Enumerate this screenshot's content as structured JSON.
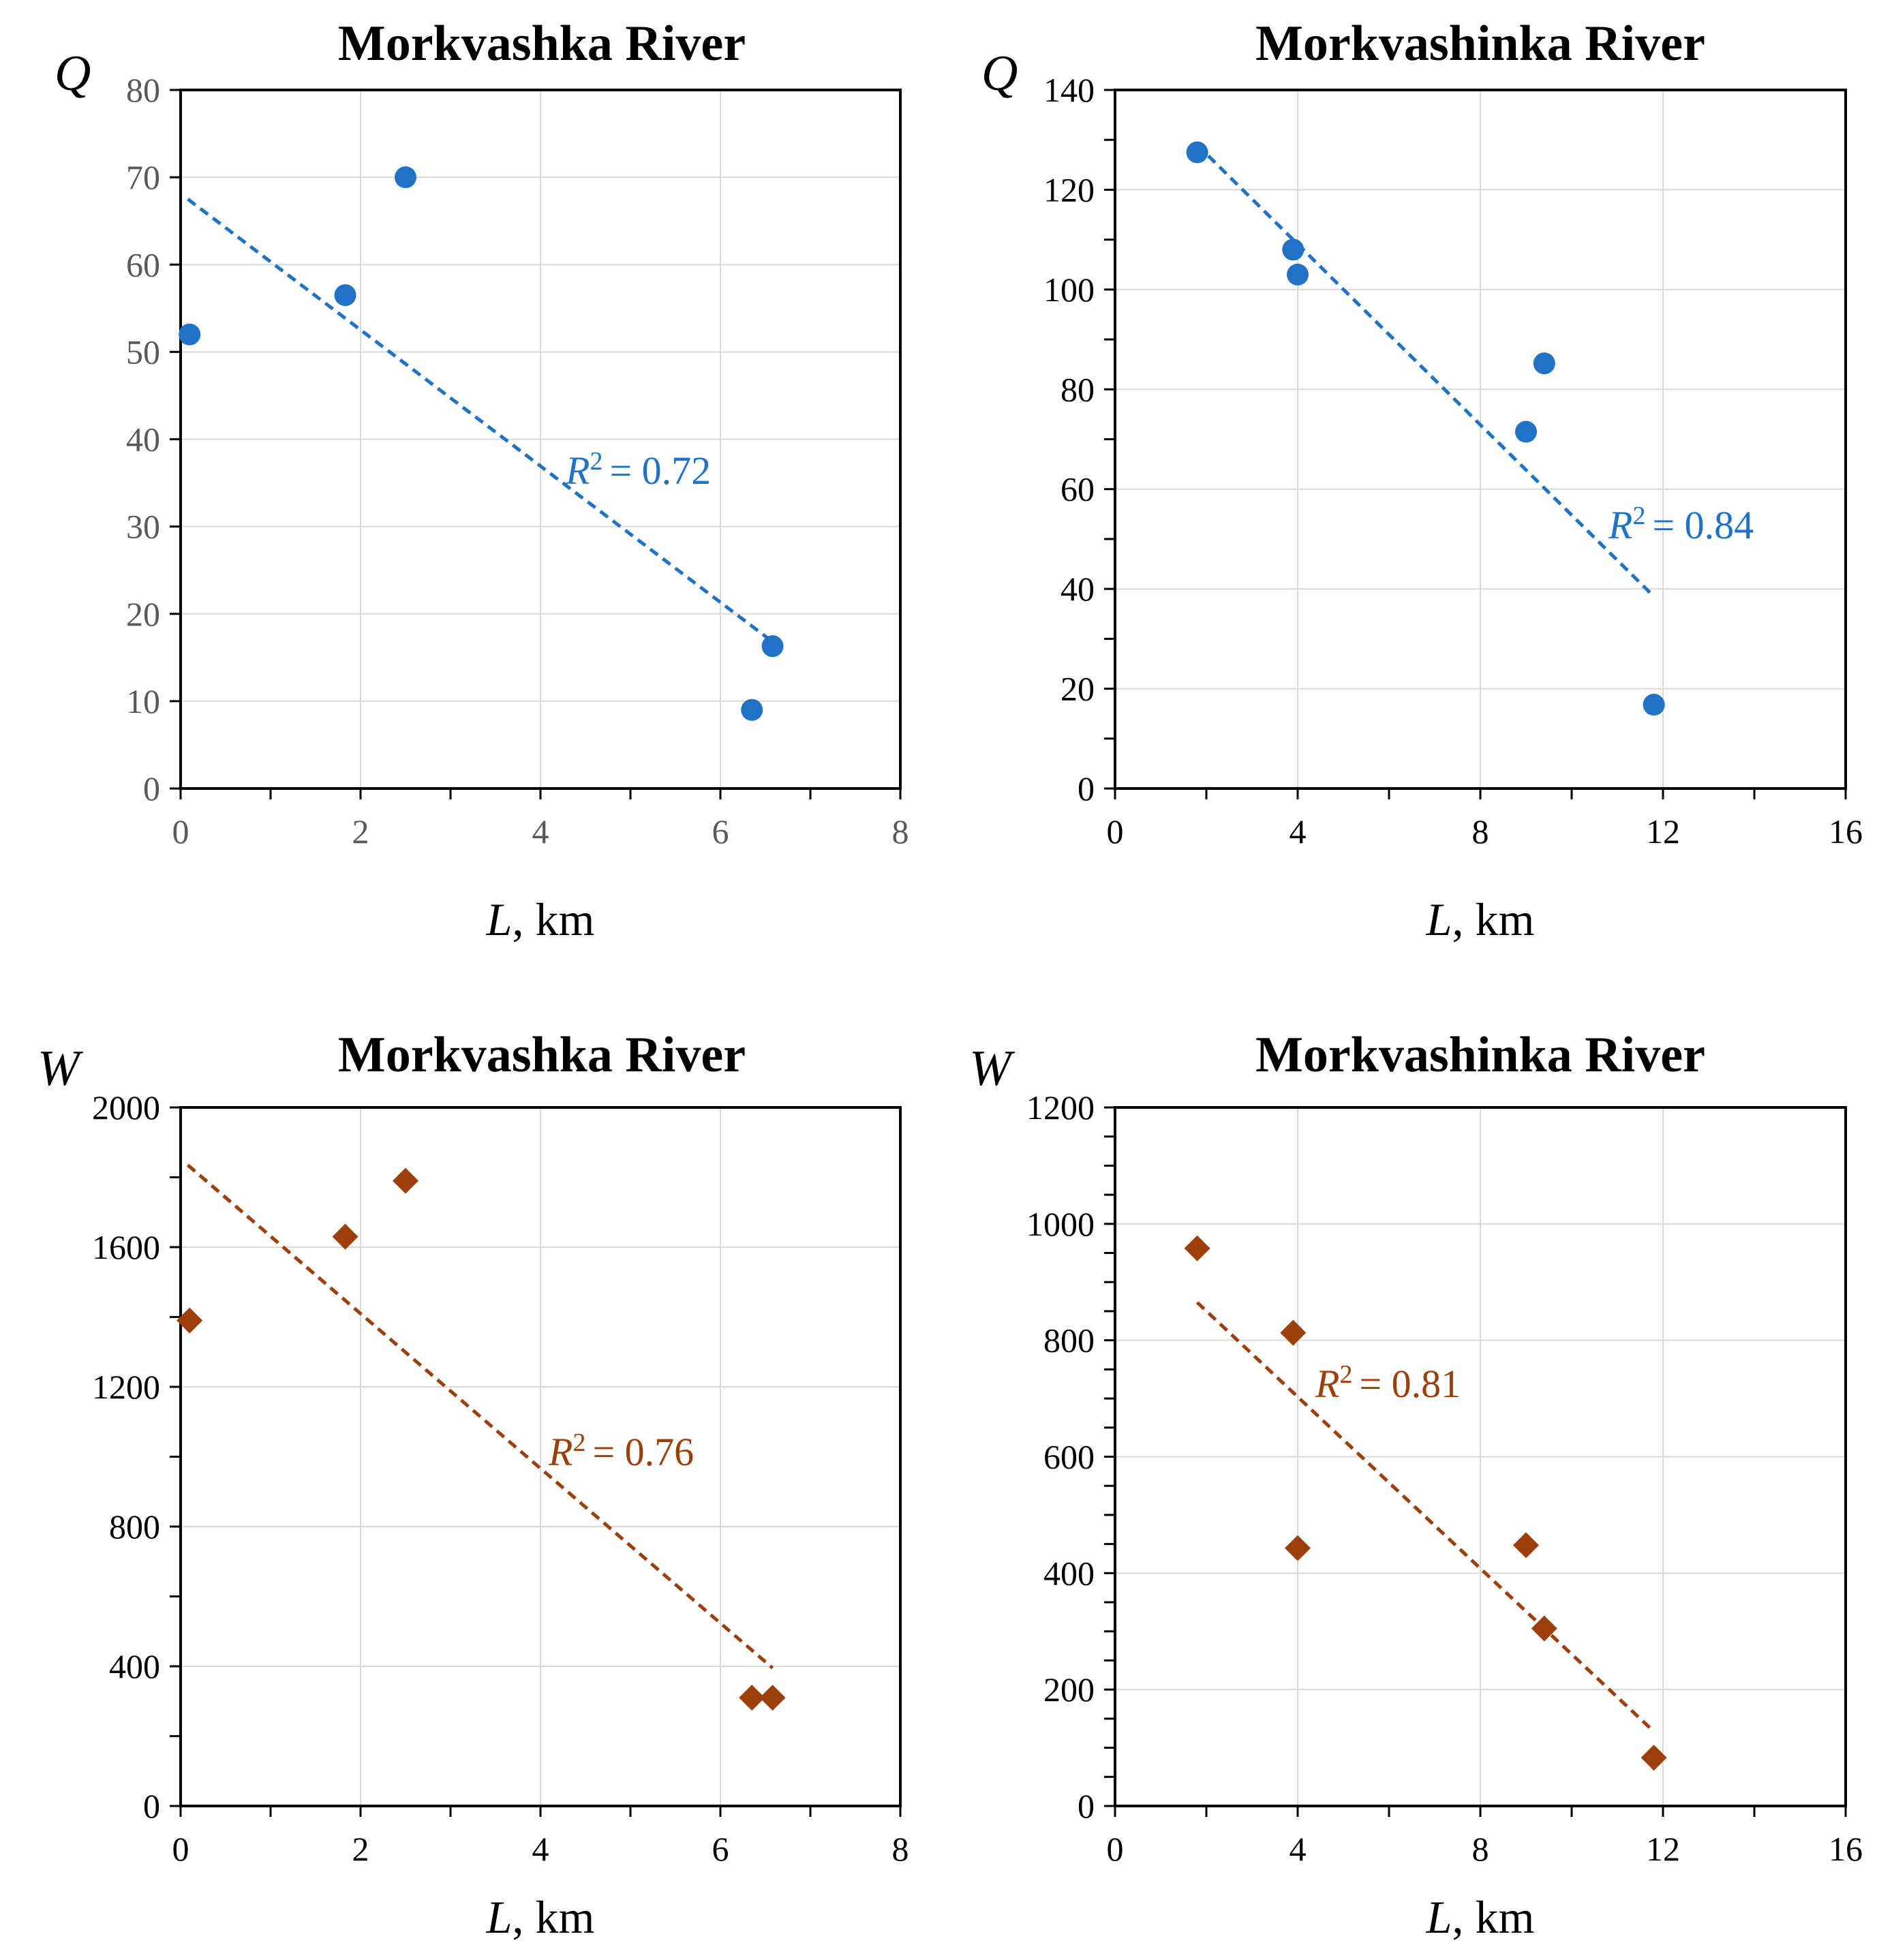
{
  "colors": {
    "blue": "#1f72c6",
    "brown": "#9c3f0a",
    "grid": "#d9d9d9",
    "axis": "#000000"
  },
  "chart_data": [
    {
      "id": "q-morkvashka",
      "type": "scatter",
      "title": "Morkvashka River",
      "y_var": "Q",
      "x_label_var": "L",
      "x_label_unit": ", km",
      "xlim": [
        0,
        8
      ],
      "ylim": [
        0,
        80
      ],
      "x_ticks": [
        0,
        2,
        4,
        6,
        8
      ],
      "y_ticks": [
        0,
        10,
        20,
        30,
        40,
        50,
        60,
        70,
        80
      ],
      "marker": "circle",
      "color": "blue",
      "series": [
        {
          "name": "Q",
          "x": [
            0.1,
            1.83,
            2.5,
            6.35,
            6.58
          ],
          "y": [
            52,
            56.5,
            70,
            9,
            16.3
          ]
        }
      ],
      "trendline": {
        "x": [
          0.08,
          6.58
        ],
        "y": [
          67.5,
          16.8
        ]
      },
      "r2_text": "= 0.72"
    },
    {
      "id": "q-morkvashinka",
      "type": "scatter",
      "title": "Morkvashinka River",
      "y_var": "Q",
      "x_label_var": "L",
      "x_label_unit": ", km",
      "xlim": [
        0,
        16
      ],
      "ylim": [
        0,
        140
      ],
      "x_ticks": [
        0,
        4,
        8,
        12,
        16
      ],
      "y_ticks": [
        0,
        20,
        40,
        60,
        80,
        100,
        120,
        140
      ],
      "marker": "circle",
      "color": "blue",
      "series": [
        {
          "name": "Q",
          "x": [
            1.8,
            3.9,
            4.0,
            9.0,
            9.4,
            11.8
          ],
          "y": [
            127.5,
            108,
            103,
            71.5,
            85.2,
            16.8
          ]
        }
      ],
      "trendline": {
        "x": [
          1.8,
          11.8
        ],
        "y": [
          129,
          38.5
        ]
      },
      "r2_text": "= 0.84"
    },
    {
      "id": "w-morkvashka",
      "type": "scatter",
      "title": "Morkvashka River",
      "y_var": "W",
      "x_label_var": "L",
      "x_label_unit": ", km",
      "xlim": [
        0,
        8
      ],
      "ylim": [
        0,
        2000
      ],
      "x_ticks": [
        0,
        2,
        4,
        6,
        8
      ],
      "y_ticks": [
        0,
        400,
        800,
        1200,
        1600,
        2000
      ],
      "marker": "diamond",
      "color": "brown",
      "series": [
        {
          "name": "W",
          "x": [
            0.1,
            1.83,
            2.5,
            6.35,
            6.58
          ],
          "y": [
            1390,
            1630,
            1790,
            310,
            310
          ]
        }
      ],
      "trendline": {
        "x": [
          0.08,
          6.58
        ],
        "y": [
          1835,
          395
        ]
      },
      "r2_text": "= 0.76"
    },
    {
      "id": "w-morkvashinka",
      "type": "scatter",
      "title": "Morkvashinka River",
      "y_var": "W",
      "x_label_var": "L",
      "x_label_unit": ", km",
      "xlim": [
        0,
        16
      ],
      "ylim": [
        0,
        1200
      ],
      "x_ticks": [
        0,
        4,
        8,
        12,
        16
      ],
      "y_ticks": [
        0,
        200,
        400,
        600,
        800,
        1000,
        1200
      ],
      "marker": "diamond",
      "color": "brown",
      "series": [
        {
          "name": "W",
          "x": [
            1.8,
            3.9,
            4.0,
            9.0,
            9.4,
            11.8
          ],
          "y": [
            958,
            813,
            443,
            448,
            305,
            83
          ]
        }
      ],
      "trendline": {
        "x": [
          1.8,
          11.8
        ],
        "y": [
          865,
          128
        ]
      },
      "r2_text": "= 0.81"
    }
  ]
}
